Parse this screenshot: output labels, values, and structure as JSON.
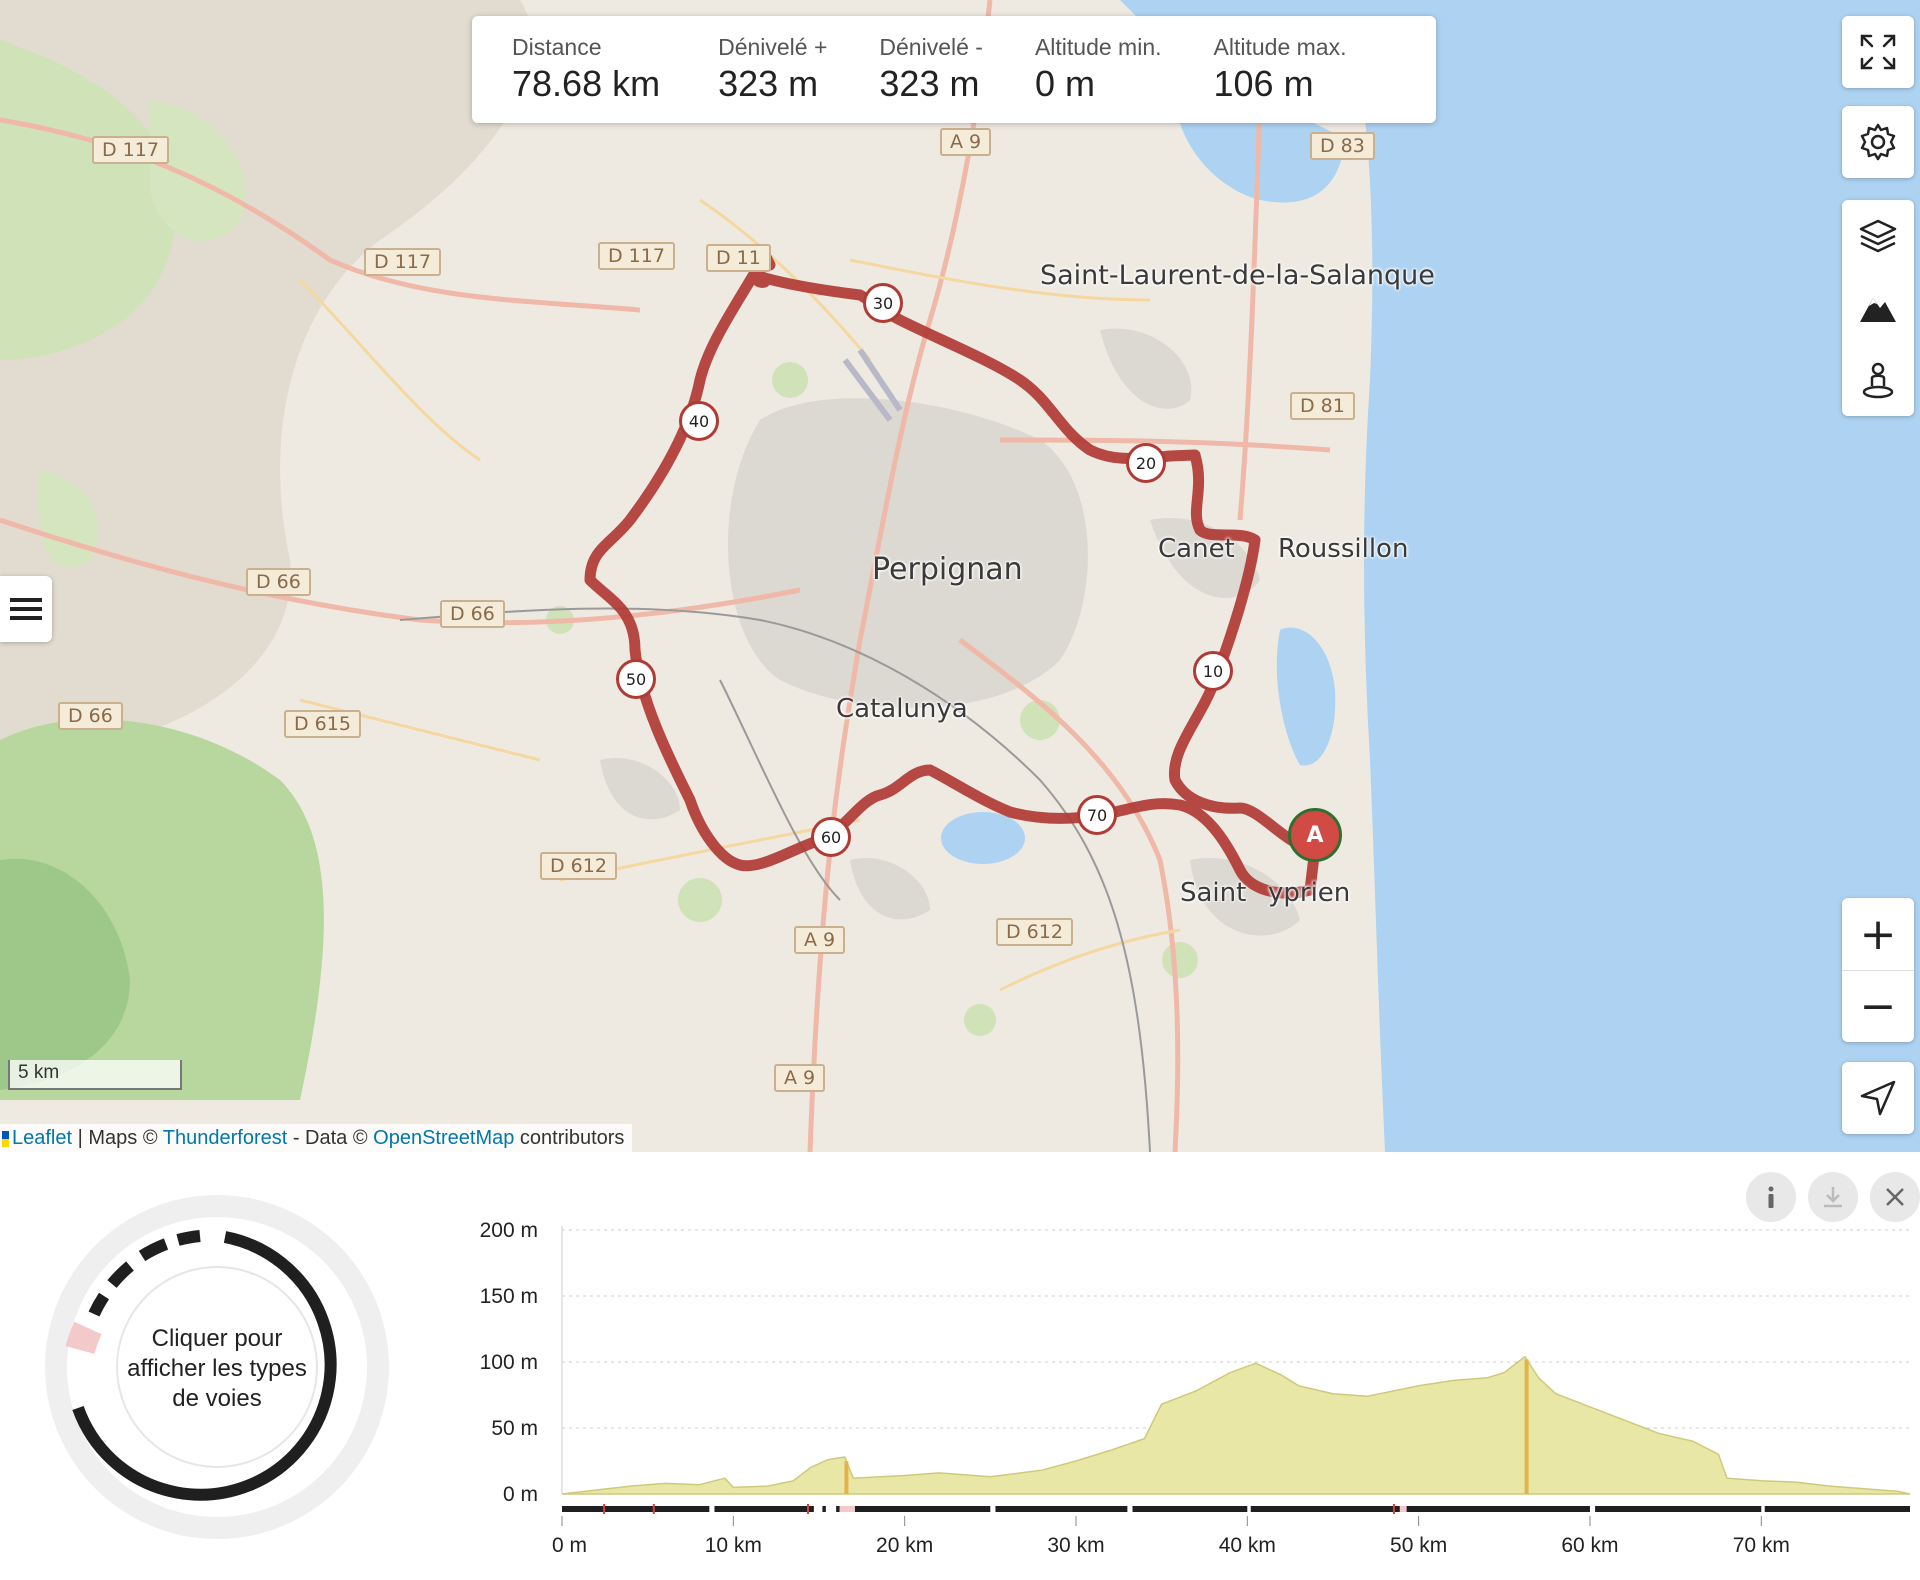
{
  "stats": {
    "distance": {
      "label": "Distance",
      "value": "78.68 km"
    },
    "ascent": {
      "label": "Dénivelé +",
      "value": "323 m"
    },
    "descent": {
      "label": "Dénivelé -",
      "value": "323 m"
    },
    "alt_min": {
      "label": "Altitude min.",
      "value": "0 m"
    },
    "alt_max": {
      "label": "Altitude max.",
      "value": "106 m"
    }
  },
  "map": {
    "places": {
      "perpignan": "Perpignan",
      "saint_laurent": "Saint-Laurent-de-la-Salanque",
      "canet_1": "Canet",
      "canet_2": "Roussillon",
      "catalunya": "Catalunya",
      "saint_cyprien_1": "Saint",
      "saint_cyprien_2": "yprien"
    },
    "roads": {
      "d117_a": "D 117",
      "d117_b": "D 117",
      "d117_c": "D 117",
      "d11": "D 11",
      "a9_a": "A 9",
      "a9_b": "A 9",
      "a9_c": "A 9",
      "d83": "D 83",
      "d81": "D 81",
      "d66_a": "D 66",
      "d66_b": "D 66",
      "d66_c": "D 66",
      "d615": "D 615",
      "d612_a": "D 612",
      "d612_b": "D 612"
    },
    "km_markers": [
      "10",
      "20",
      "30",
      "40",
      "50",
      "60",
      "70"
    ],
    "start_marker": "A",
    "route_color": "#b03a34",
    "scale_label": "5 km",
    "attribution": {
      "leaflet": "Leaflet",
      "maps": " | Maps © ",
      "thunderforest": "Thunderforest",
      "data": " - Data © ",
      "osm": "OpenStreetMap",
      "contributors": " contributors"
    }
  },
  "toolbar": {
    "fullscreen": "expand-icon",
    "settings": "gear-icon",
    "layers": "layers-icon",
    "terrain": "mountain-icon",
    "poi": "person-pin-icon",
    "zoom_in": "+",
    "zoom_out": "−",
    "locate": "navigation-arrow-icon"
  },
  "bottom": {
    "donut_text": "Cliquer pour afficher les types de voies",
    "buttons": [
      "info-icon",
      "download-icon",
      "close-icon"
    ]
  },
  "chart_data": {
    "type": "area",
    "xlabel": "",
    "ylabel": "",
    "xlim": [
      0,
      78.68
    ],
    "ylim": [
      0,
      200
    ],
    "x_ticks": [
      "0 m",
      "10 km",
      "20 km",
      "30 km",
      "40 km",
      "50 km",
      "60 km",
      "70 km"
    ],
    "x_tick_values": [
      0,
      10,
      20,
      30,
      40,
      50,
      60,
      70
    ],
    "y_ticks": [
      "0 m",
      "50 m",
      "100 m",
      "150 m",
      "200 m"
    ],
    "y_tick_values": [
      0,
      50,
      100,
      150,
      200
    ],
    "fill_color": "#e9e7a6",
    "line_color": "#cfc97a",
    "x": [
      0,
      2,
      4,
      6,
      8,
      9.5,
      10,
      12,
      13.5,
      14.5,
      15.5,
      16.5,
      17,
      20,
      22,
      25,
      28,
      30,
      32,
      34,
      35,
      37,
      39,
      40.5,
      42,
      43,
      45,
      47,
      50,
      52,
      54,
      55,
      56.2,
      57,
      58,
      60,
      62,
      64,
      66,
      67.5,
      68,
      70,
      72,
      74,
      76,
      78,
      78.68
    ],
    "y": [
      0,
      3,
      6,
      8,
      7,
      12,
      5,
      6,
      10,
      20,
      26,
      28,
      12,
      14,
      16,
      13,
      18,
      25,
      33,
      42,
      68,
      78,
      92,
      99,
      90,
      82,
      76,
      74,
      82,
      86,
      88,
      92,
      104,
      88,
      76,
      66,
      56,
      46,
      40,
      30,
      12,
      10,
      9,
      6,
      4,
      2,
      0
    ],
    "highlights": [
      {
        "x": 16.6,
        "color": "#e3b44a"
      },
      {
        "x": 56.3,
        "color": "#e3b44a"
      }
    ]
  }
}
